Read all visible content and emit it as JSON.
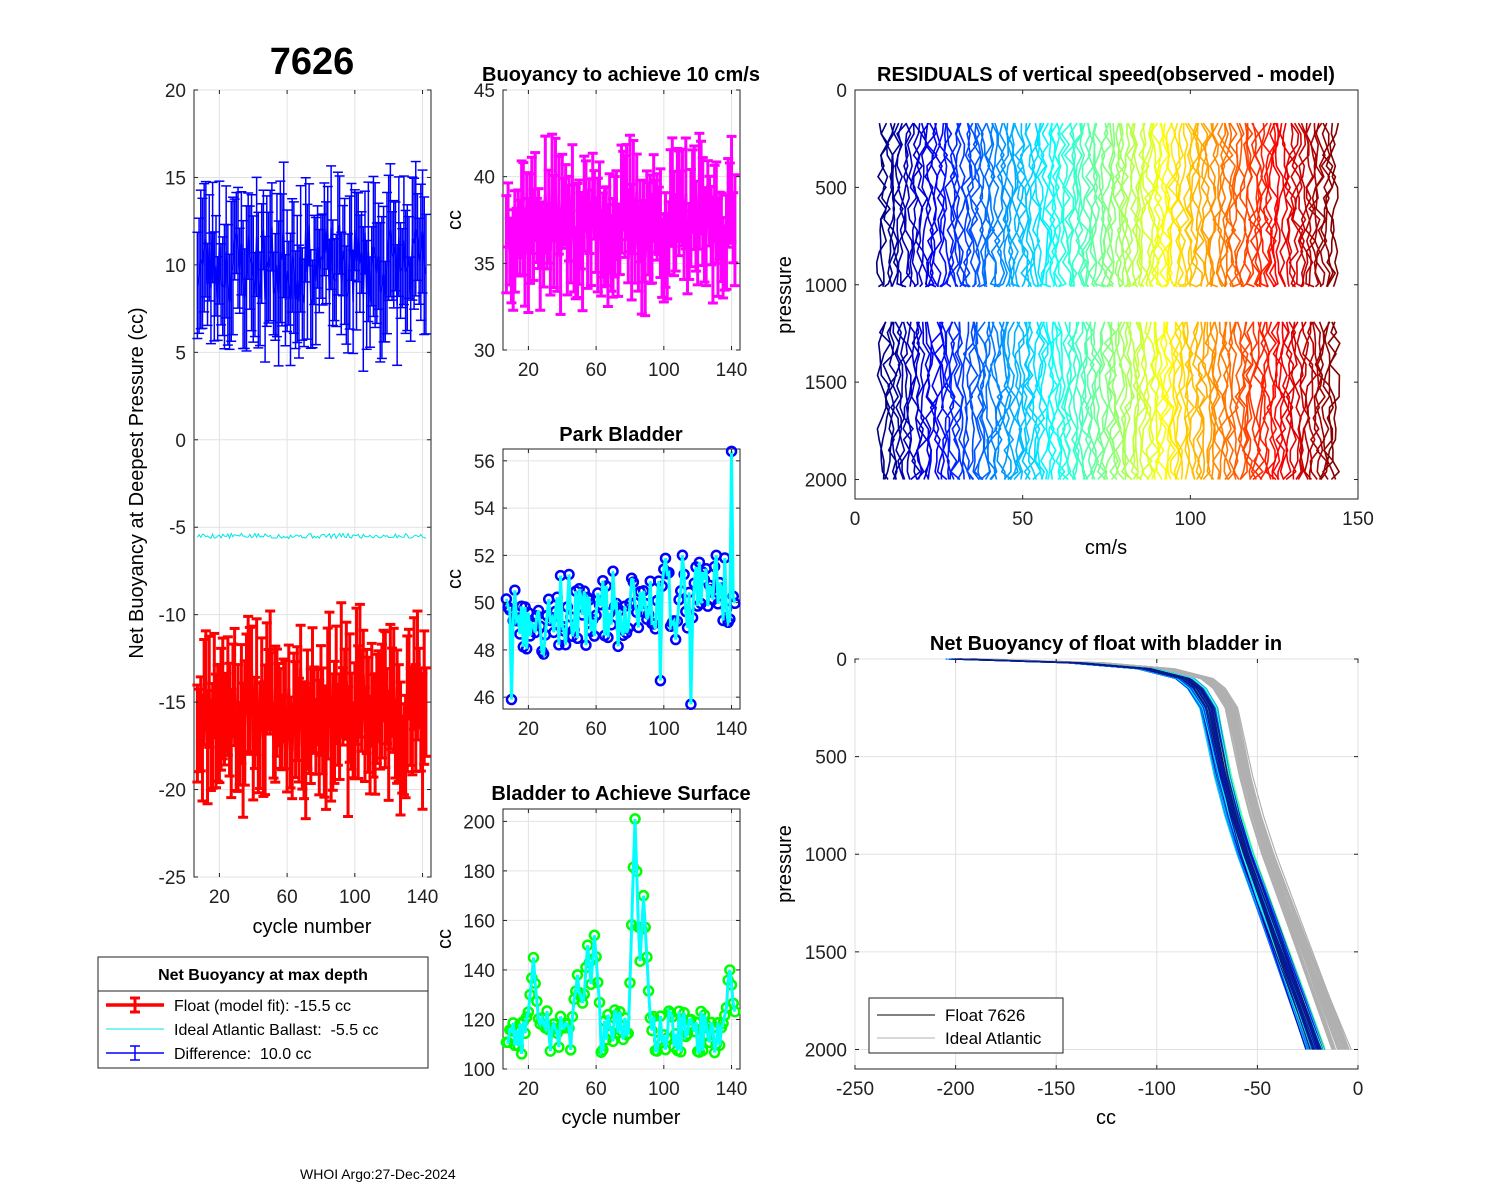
{
  "figure": {
    "float_id": "7626",
    "footer_org": "WHOI Argo:",
    "footer_date": "27-Dec-2024"
  },
  "chart_data": [
    {
      "id": "net_buoyancy",
      "type": "line",
      "title": "7626",
      "xlabel": "cycle number",
      "ylabel": "Net Buoyancy at Deepest Pressure (cc)",
      "xlim": [
        5,
        145
      ],
      "ylim": [
        -25,
        20
      ],
      "xticks": [
        20,
        60,
        100,
        140
      ],
      "yticks": [
        -25,
        -20,
        -15,
        -10,
        -5,
        0,
        5,
        10,
        15,
        20
      ],
      "grid": true,
      "x": {
        "start": 7,
        "end": 142,
        "step": 1
      },
      "series": [
        {
          "name": "Float (model fit)",
          "color": "#ff0000",
          "errorbars": true,
          "mean": -15.5,
          "spread": 2.5,
          "err": 3.0
        },
        {
          "name": "Ideal Atlantic Ballast",
          "color": "#00e5e5",
          "errorbars": false,
          "mean": -5.5,
          "spread": 0.15
        },
        {
          "name": "Difference",
          "color": "#0000ff",
          "errorbars": true,
          "mean": 10.0,
          "spread": 2.3,
          "err": 3.2
        }
      ],
      "legend": {
        "title": "Net Buoyancy at max depth",
        "placement": "below",
        "entries": [
          "Float (model fit): -15.5 cc",
          "Ideal Atlantic Ballast:  -5.5 cc",
          "Difference:  10.0 cc"
        ]
      }
    },
    {
      "id": "buoyancy_10cms",
      "type": "line",
      "title": "Buoyancy to achieve 10 cm/s",
      "xlabel": "",
      "ylabel": "cc",
      "xlim": [
        5,
        145
      ],
      "ylim": [
        30,
        45
      ],
      "xticks": [
        20,
        60,
        100,
        140
      ],
      "yticks": [
        30,
        35,
        40,
        45
      ],
      "grid": true,
      "x": {
        "start": 7,
        "end": 142,
        "step": 1
      },
      "series": [
        {
          "name": "buoyancy",
          "color": "#ff00ff",
          "errorbars": true,
          "mean": 37.2,
          "spread": 2.2,
          "err": 2.6
        }
      ]
    },
    {
      "id": "park_bladder",
      "type": "line",
      "title": "Park Bladder",
      "xlabel": "",
      "ylabel": "cc",
      "xlim": [
        5,
        145
      ],
      "ylim": [
        45.5,
        56.5
      ],
      "xticks": [
        20,
        60,
        100,
        140
      ],
      "yticks": [
        46,
        48,
        50,
        52,
        54,
        56
      ],
      "grid": true,
      "x": {
        "start": 7,
        "end": 142,
        "step": 1
      },
      "series": [
        {
          "name": "park bladder",
          "color": "#00ffff",
          "marker_color": "#0000ff",
          "mean": 49.8,
          "spread": 1.6,
          "trend": 0.012,
          "max": 56.4,
          "min": 45.7
        }
      ]
    },
    {
      "id": "bladder_surface",
      "type": "line",
      "title": "Bladder to Achieve Surface",
      "xlabel": "cycle number",
      "ylabel": "cc",
      "xlim": [
        5,
        145
      ],
      "ylim": [
        100,
        205
      ],
      "xticks": [
        20,
        60,
        100,
        140
      ],
      "yticks": [
        100,
        120,
        140,
        160,
        180,
        200
      ],
      "grid": true,
      "x": {
        "start": 7,
        "end": 142,
        "step": 1
      },
      "series": [
        {
          "name": "surface bladder",
          "color": "#00ffff",
          "marker_color": "#00ff00",
          "base": 115,
          "peaks": [
            [
              23,
              145
            ],
            [
              49,
              138
            ],
            [
              55,
              150
            ],
            [
              59,
              154
            ],
            [
              83,
              201
            ],
            [
              88,
              170
            ],
            [
              139,
              140
            ]
          ]
        }
      ]
    },
    {
      "id": "residuals",
      "type": "line",
      "title": "RESIDUALS of vertical speed(observed - model)",
      "xlabel": "cm/s",
      "ylabel": "pressure",
      "xlim": [
        0,
        150
      ],
      "ylim": [
        0,
        2100
      ],
      "xticks": [
        0,
        50,
        100,
        150
      ],
      "yticks": [
        0,
        500,
        1000,
        1500,
        2000
      ],
      "y_reversed": true,
      "grid": false,
      "profiles": {
        "count": 136,
        "x_start": 8,
        "x_end": 143,
        "segments": [
          [
            170,
            1010
          ],
          [
            1190,
            2000
          ]
        ],
        "colormap": "jet"
      }
    },
    {
      "id": "net_buoyancy_bladder",
      "type": "line",
      "title": "Net Buoyancy of float with bladder in",
      "xlabel": "cc",
      "ylabel": "pressure",
      "xlim": [
        -250,
        0
      ],
      "ylim": [
        0,
        2100
      ],
      "xticks": [
        -250,
        -200,
        -150,
        -100,
        -50,
        0
      ],
      "yticks": [
        0,
        500,
        1000,
        1500,
        2000
      ],
      "y_reversed": true,
      "grid": true,
      "profile_shape": {
        "pressure": [
          0,
          20,
          50,
          100,
          150,
          250,
          400,
          600,
          800,
          1000,
          1200,
          1400,
          1600,
          1800,
          2000
        ],
        "buoyancy": [
          -200,
          -140,
          -105,
          -86,
          -80,
          -74,
          -71,
          -67,
          -62,
          -56,
          -49,
          -42,
          -35,
          -28,
          -21
        ]
      },
      "series": [
        {
          "name": "Float 7626",
          "color": "#000000"
        },
        {
          "name": "Ideal Atlantic",
          "color": "#b0b0b0"
        }
      ],
      "legend": {
        "placement": "bottom-left",
        "entries": [
          "Float 7626",
          "Ideal Atlantic"
        ]
      }
    }
  ]
}
